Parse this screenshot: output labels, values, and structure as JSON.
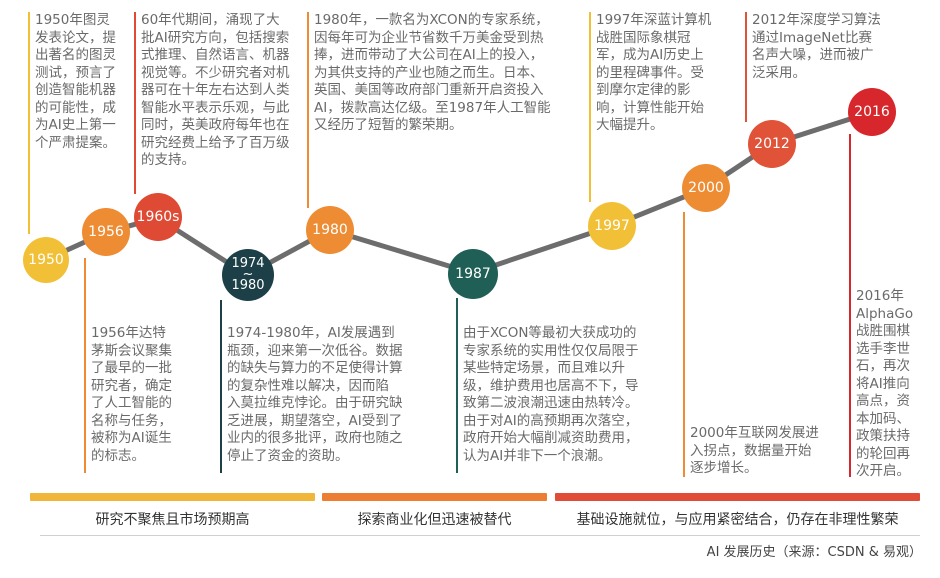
{
  "timeline": {
    "nodes": [
      {
        "id": "1950",
        "label": "1950",
        "color": "#f2c037"
      },
      {
        "id": "1956",
        "label": "1956",
        "color": "#ee8c34"
      },
      {
        "id": "1960s",
        "label": "1960s",
        "color": "#de4a33"
      },
      {
        "id": "1974-1980",
        "label_top": "1974",
        "label_bottom": "1980",
        "label_mid": "~",
        "color": "#1d3f47"
      },
      {
        "id": "1980",
        "label": "1980",
        "color": "#ee8c34"
      },
      {
        "id": "1987",
        "label": "1987",
        "color": "#1f5f55"
      },
      {
        "id": "1997",
        "label": "1997",
        "color": "#f2c037"
      },
      {
        "id": "2000",
        "label": "2000",
        "color": "#ee8c34"
      },
      {
        "id": "2012",
        "label": "2012",
        "color": "#e05338"
      },
      {
        "id": "2016",
        "label": "2016",
        "color": "#d8272c"
      }
    ],
    "notes": {
      "n1950": "1950年图灵\n发表论文，提\n出著名的图灵\n测试，预言了\n创造智能机器\n的可能性，成\n为AI史上第一\n个严肃提案。",
      "n1960s": "60年代期间，涌现了大\n批AI研究方向，包括搜索\n式推理、自然语言、机器\n视觉等。不少研究者对机\n器可在十年左右达到人类\n智能水平表示乐观，与此\n同时，英美政府每年也在\n研究经费上给予了百万级\n的支持。",
      "n1980": "1980年，一款名为XCON的专家系统，\n因每年可为企业节省数千万美金受到热\n捧，进而带动了大公司在AI上的投入，\n为其供支持的产业也随之而生。日本、\n英国、美国等政府部门重新开启资投入\nAI，拨款高达亿级。至1987年人工智能\n又经历了短暂的繁荣期。",
      "n1997": "1997年深蓝计算机\n战胜国际象棋冠\n军，成为AI历史上\n的里程碑事件。受\n到摩尔定律的影\n响，计算性能开始\n大幅提升。",
      "n2012": "2012年深度学习算法\n通过ImageNet比赛\n名声大噪，进而被广\n泛采用。",
      "n1956": "1956年达特\n茅斯会议聚集\n了最早的一批\n研究者，确定\n了人工智能的\n名称与任务，\n被称为AI诞生\n的标志。",
      "n1974": "1974-1980年，AI发展遇到\n瓶颈，迎来第一次低谷。数据\n的缺失与算力的不足使得计算\n的复杂性难以解决，因而陷\n入莫拉维克悖论。由于研究缺\n乏进展，期望落空，AI受到了\n业内的很多批评，政府也随之\n停止了资金的资助。",
      "n1987": "由于XCON等最初大获成功的\n专家系统的实用性仅仅局限于\n某些特定场景，而且难以升\n级，维护费用也居高不下，导\n致第二波浪潮迅速由热转冷。\n由于对AI的高预期再次落空，\n政府开始大幅削减资助费用，\n认为AI并非下一个浪潮。",
      "n2000": "2000年互联网发展进\n入拐点，数据量开始\n逐步增长。",
      "n2016": "2016年\nAlphaGo\n战胜围棋\n选手李世\n石，再次\n将AI推向\n高点，资\n本加码、\n政策扶持\n的轮回再\n次开启。"
    }
  },
  "phases": [
    {
      "label": "研究不聚焦且市场预期高",
      "color": "#f0b63a"
    },
    {
      "label": "探索商业化但迅速被替代",
      "color": "#ec7d32"
    },
    {
      "label": "基础设施就位，与应用紧密结合，仍存在非理性繁荣",
      "color": "#e04c37"
    }
  ],
  "caption": "AI 发展历史（来源：CSDN & 易观）"
}
